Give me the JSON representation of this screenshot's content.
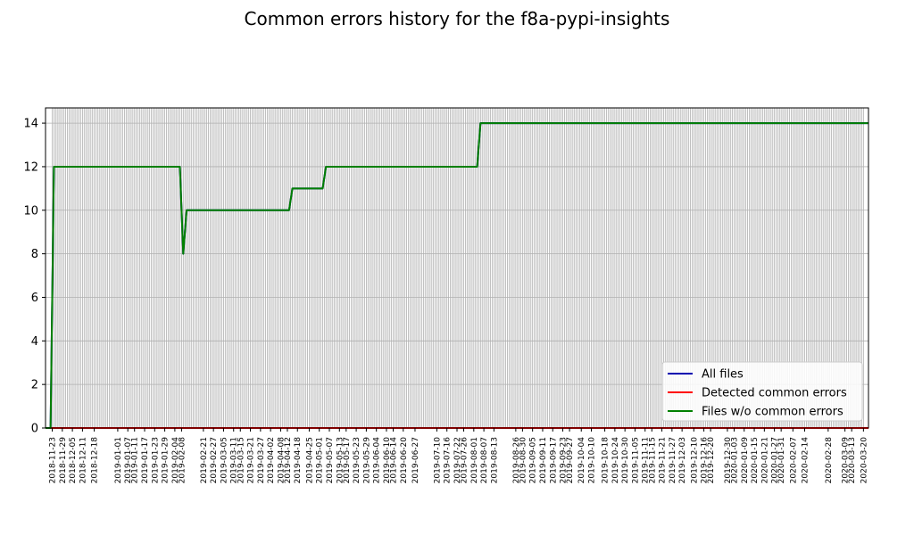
{
  "chart_data": {
    "type": "line",
    "title": "Common errors history for the f8a-pypi-insights",
    "xlabel": "",
    "ylabel": "",
    "ylim": [
      0,
      14.7
    ],
    "yticks": [
      0,
      2,
      4,
      6,
      8,
      10,
      12,
      14
    ],
    "grid": true,
    "legend_position": "bottom-right",
    "x_range": [
      "2018-11-19",
      "2020-03-23"
    ],
    "xtick_labels": [
      "2018-11-23",
      "2018-11-29",
      "2018-12-05",
      "2018-12-11",
      "2018-12-18",
      "2019-01-01",
      "2019-01-07",
      "2019-01-11",
      "2019-01-17",
      "2019-01-23",
      "2019-01-29",
      "2019-02-04",
      "2019-02-08",
      "2019-02-21",
      "2019-02-27",
      "2019-03-05",
      "2019-03-11",
      "2019-03-15",
      "2019-03-21",
      "2019-03-27",
      "2019-04-02",
      "2019-04-08",
      "2019-04-12",
      "2019-04-18",
      "2019-04-25",
      "2019-05-01",
      "2019-05-07",
      "2019-05-13",
      "2019-05-17",
      "2019-05-23",
      "2019-05-29",
      "2019-06-04",
      "2019-06-10",
      "2019-06-14",
      "2019-06-20",
      "2019-06-27",
      "2019-07-10",
      "2019-07-16",
      "2019-07-22",
      "2019-07-26",
      "2019-08-01",
      "2019-08-07",
      "2019-08-13",
      "2019-08-26",
      "2019-08-30",
      "2019-09-05",
      "2019-09-11",
      "2019-09-17",
      "2019-09-23",
      "2019-09-27",
      "2019-10-04",
      "2019-10-10",
      "2019-10-18",
      "2019-10-24",
      "2019-10-30",
      "2019-11-05",
      "2019-11-11",
      "2019-11-15",
      "2019-11-21",
      "2019-11-27",
      "2019-12-03",
      "2019-12-10",
      "2019-12-16",
      "2019-12-20",
      "2019-12-30",
      "2020-01-03",
      "2020-01-09",
      "2020-01-15",
      "2020-01-21",
      "2020-01-27",
      "2020-01-31",
      "2020-02-07",
      "2020-02-14",
      "2020-02-28",
      "2020-03-09",
      "2020-03-13",
      "2020-03-20"
    ],
    "series": [
      {
        "name": "All files",
        "color": "#0000b0",
        "x": [
          "2018-11-19",
          "2018-11-22",
          "2018-11-24",
          "2019-02-07",
          "2019-02-09",
          "2019-02-11",
          "2019-04-13",
          "2019-04-15",
          "2019-05-03",
          "2019-05-05",
          "2019-08-03",
          "2019-08-05",
          "2020-03-23"
        ],
        "y": [
          0,
          0,
          12,
          12,
          8,
          10,
          10,
          11,
          11,
          12,
          12,
          14,
          14
        ]
      },
      {
        "name": "Detected common errors",
        "color": "#ff0000",
        "x": [
          "2018-11-19",
          "2020-03-23"
        ],
        "y": [
          0,
          0
        ]
      },
      {
        "name": "Files w/o common errors",
        "color": "#008000",
        "x": [
          "2018-11-19",
          "2018-11-22",
          "2018-11-24",
          "2019-02-07",
          "2019-02-09",
          "2019-02-11",
          "2019-04-13",
          "2019-04-15",
          "2019-05-03",
          "2019-05-05",
          "2019-08-03",
          "2019-08-05",
          "2020-03-23"
        ],
        "y": [
          0,
          0,
          12,
          12,
          8,
          10,
          10,
          11,
          11,
          12,
          12,
          14,
          14
        ]
      }
    ]
  }
}
